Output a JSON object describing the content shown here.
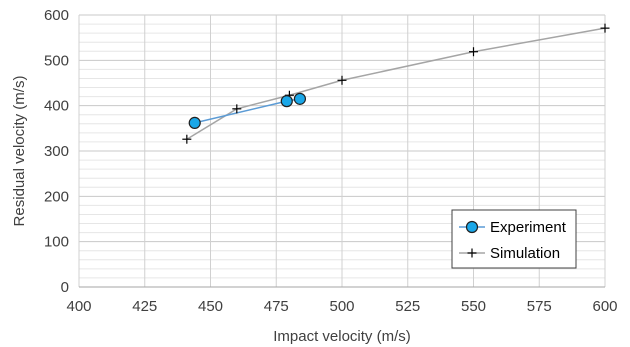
{
  "chart_data": {
    "type": "scatter",
    "title": "",
    "xlabel": "Impact velocity (m/s)",
    "ylabel": "Residual velocity (m/s)",
    "xlim": [
      400,
      600
    ],
    "ylim": [
      0,
      600
    ],
    "x_ticks": [
      "400",
      "425",
      "450",
      "475",
      "500",
      "525",
      "550",
      "575",
      "600"
    ],
    "y_ticks": [
      "0",
      "100",
      "200",
      "300",
      "400",
      "500",
      "600"
    ],
    "grid": true,
    "legend_position": "bottom-right",
    "series": [
      {
        "name": "Experiment",
        "marker": "circle",
        "color": "#1aa7e8",
        "line_color": "#5b9bd5",
        "points": [
          {
            "x": 444,
            "y": 362
          },
          {
            "x": 479,
            "y": 410
          },
          {
            "x": 484,
            "y": 415
          }
        ]
      },
      {
        "name": "Simulation",
        "marker": "plus",
        "color": "#000000",
        "line_color": "#a5a5a5",
        "points": [
          {
            "x": 441,
            "y": 326
          },
          {
            "x": 460,
            "y": 393
          },
          {
            "x": 480,
            "y": 423
          },
          {
            "x": 500,
            "y": 456
          },
          {
            "x": 550,
            "y": 519
          },
          {
            "x": 600,
            "y": 571
          }
        ]
      }
    ]
  }
}
